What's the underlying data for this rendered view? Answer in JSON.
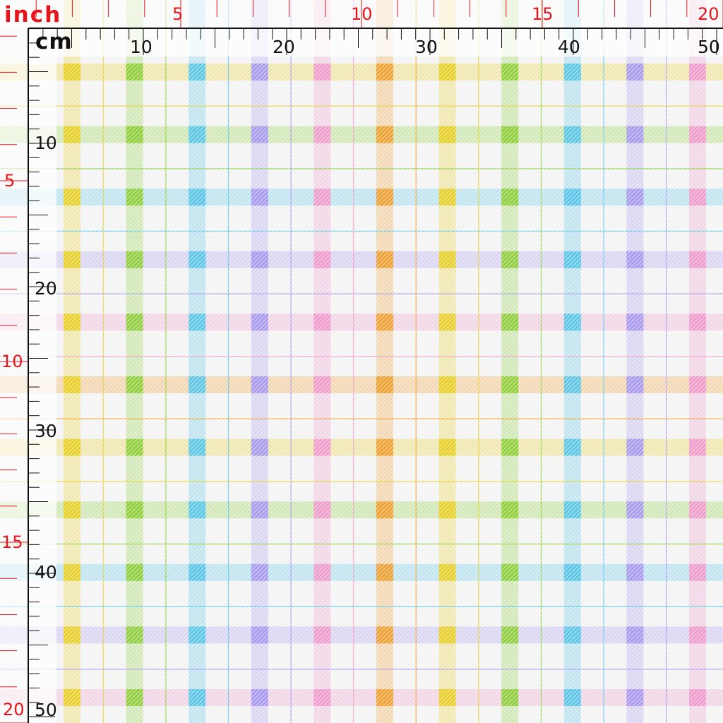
{
  "ruler": {
    "inch_unit_label": "inch",
    "cm_unit_label": "cm",
    "inch_top_labels": [
      "5",
      "10",
      "15",
      "20"
    ],
    "inch_left_labels": [
      "5",
      "10",
      "15",
      "20"
    ],
    "cm_top_labels": [
      "10",
      "20",
      "30",
      "40",
      "50"
    ],
    "cm_left_labels": [
      "10",
      "20",
      "30",
      "40",
      "50"
    ],
    "colors": {
      "inch": "#e8141b",
      "cm": "#111111",
      "ruler_bg": "#ffffff"
    }
  },
  "fabric": {
    "pattern": "pastel gingham plaid",
    "background": "#f4f4f4",
    "stripe_colors": [
      "#e8d028",
      "#8fcf3c",
      "#5bc6e8",
      "#a89af0",
      "#f09ccc",
      "#f0a030",
      "#e8d028",
      "#8fcf3c",
      "#5bc6e8",
      "#a89af0",
      "#f09ccc"
    ]
  }
}
